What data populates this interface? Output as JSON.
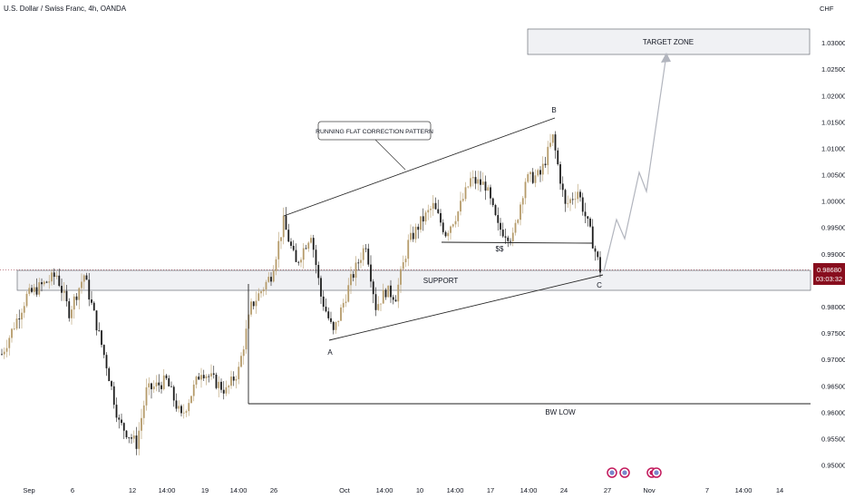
{
  "header": {
    "title": "U.S. Dollar / Swiss Franc, 4h, OANDA"
  },
  "price_axis": {
    "currency_label": "CHF",
    "current_price": "0.98680",
    "countdown": "03:03:32",
    "current_price_color": "#880e1e"
  },
  "annotations": {
    "target_zone": "TARGET ZONE",
    "support": "SUPPORT",
    "pattern_callout": "RUNNING FLAT CORRECTION PATTERN",
    "wave_a": "A",
    "wave_b": "B",
    "wave_c": "C",
    "sell_side": "$$",
    "bw_low": "BW LOW"
  },
  "colors": {
    "bull": "#b59b6a",
    "bear": "#1c1c1c",
    "zone_fill": "#f0f1f4",
    "line": "#222222",
    "projection": "#b2b5be"
  },
  "chart_data": {
    "type": "candlestick",
    "symbol": "USDCHF",
    "timeframe": "4h",
    "ylim": [
      0.947,
      1.035
    ],
    "y_ticks": [
      {
        "v": 1.03,
        "label": "1.03000"
      },
      {
        "v": 1.025,
        "label": "1.02500"
      },
      {
        "v": 1.02,
        "label": "1.02000"
      },
      {
        "v": 1.015,
        "label": "1.01500"
      },
      {
        "v": 1.01,
        "label": "1.01000"
      },
      {
        "v": 1.005,
        "label": "1.00500"
      },
      {
        "v": 1.0,
        "label": "1.00000"
      },
      {
        "v": 0.995,
        "label": "0.99500"
      },
      {
        "v": 0.99,
        "label": "0.99000"
      },
      {
        "v": 0.98,
        "label": "0.98000"
      },
      {
        "v": 0.975,
        "label": "0.97500"
      },
      {
        "v": 0.97,
        "label": "0.97000"
      },
      {
        "v": 0.965,
        "label": "0.96500"
      },
      {
        "v": 0.96,
        "label": "0.96000"
      },
      {
        "v": 0.955,
        "label": "0.95500"
      },
      {
        "v": 0.95,
        "label": "0.95000"
      }
    ],
    "x_ticks": [
      "Sep",
      "6",
      "12",
      "14:00",
      "19",
      "14:00",
      "26",
      "Oct",
      "14:00",
      "10",
      "14:00",
      "17",
      "14:00",
      "24",
      "27",
      "Nov",
      "7",
      "14:00",
      "14"
    ],
    "anchors": [
      {
        "bar": 0,
        "price": 0.971
      },
      {
        "bar": 10,
        "price": 0.982
      },
      {
        "bar": 22,
        "price": 0.986
      },
      {
        "bar": 27,
        "price": 0.979
      },
      {
        "bar": 33,
        "price": 0.986
      },
      {
        "bar": 42,
        "price": 0.969
      },
      {
        "bar": 47,
        "price": 0.958
      },
      {
        "bar": 54,
        "price": 0.954
      },
      {
        "bar": 58,
        "price": 0.964
      },
      {
        "bar": 66,
        "price": 0.966
      },
      {
        "bar": 72,
        "price": 0.959
      },
      {
        "bar": 80,
        "price": 0.968
      },
      {
        "bar": 90,
        "price": 0.964
      },
      {
        "bar": 95,
        "price": 0.968
      },
      {
        "bar": 100,
        "price": 0.98
      },
      {
        "bar": 108,
        "price": 0.986
      },
      {
        "bar": 113,
        "price": 0.996
      },
      {
        "bar": 118,
        "price": 0.988
      },
      {
        "bar": 124,
        "price": 0.994
      },
      {
        "bar": 128,
        "price": 0.982
      },
      {
        "bar": 133,
        "price": 0.975
      },
      {
        "bar": 140,
        "price": 0.985
      },
      {
        "bar": 146,
        "price": 0.992
      },
      {
        "bar": 150,
        "price": 0.98
      },
      {
        "bar": 154,
        "price": 0.983
      },
      {
        "bar": 158,
        "price": 0.982
      },
      {
        "bar": 163,
        "price": 0.992
      },
      {
        "bar": 168,
        "price": 0.996
      },
      {
        "bar": 173,
        "price": 0.999
      },
      {
        "bar": 178,
        "price": 0.994
      },
      {
        "bar": 183,
        "price": 0.998
      },
      {
        "bar": 188,
        "price": 1.004
      },
      {
        "bar": 194,
        "price": 1.003
      },
      {
        "bar": 199,
        "price": 0.995
      },
      {
        "bar": 205,
        "price": 0.993
      },
      {
        "bar": 210,
        "price": 1.004
      },
      {
        "bar": 216,
        "price": 1.005
      },
      {
        "bar": 221,
        "price": 1.012
      },
      {
        "bar": 226,
        "price": 0.999
      },
      {
        "bar": 231,
        "price": 1.002
      },
      {
        "bar": 236,
        "price": 0.994
      },
      {
        "bar": 240,
        "price": 0.987
      }
    ]
  }
}
